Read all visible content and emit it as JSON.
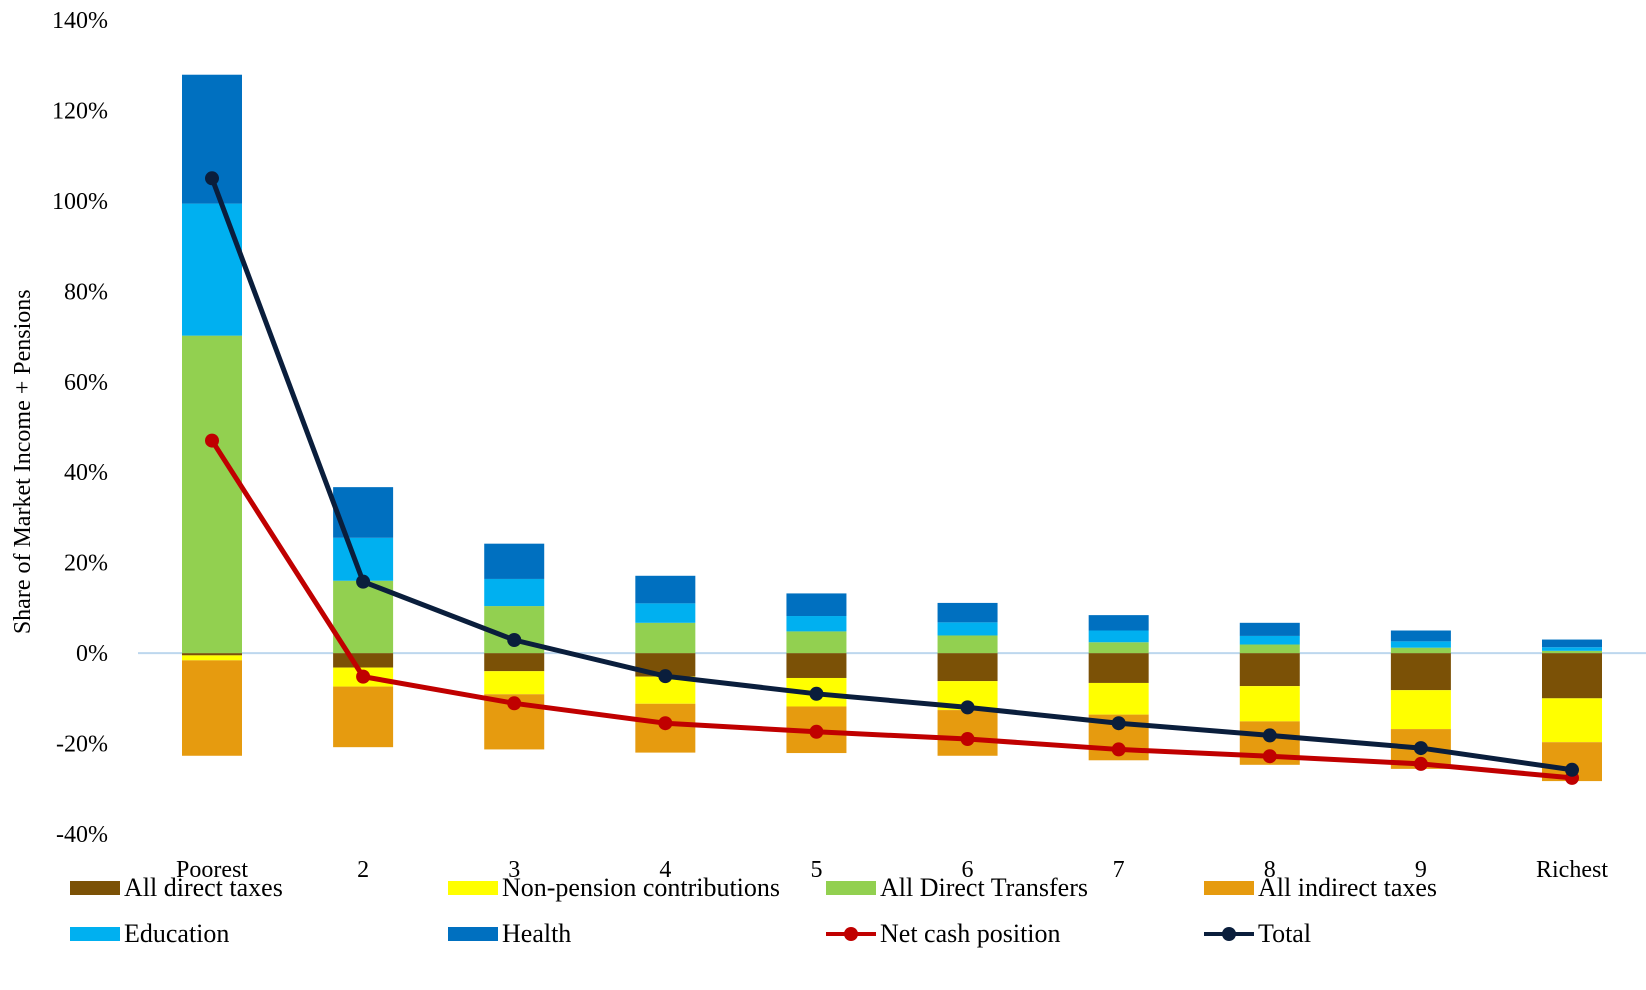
{
  "chart_data": {
    "type": "bar",
    "stacked": true,
    "ylabel": "Share of Market Income + Pensions",
    "xlabel": "",
    "ylim": [
      -40,
      140
    ],
    "yticks": [
      -40,
      -20,
      0,
      20,
      40,
      60,
      80,
      100,
      120,
      140
    ],
    "ytick_labels": [
      "-40%",
      "-20%",
      "0%",
      "20%",
      "40%",
      "60%",
      "80%",
      "100%",
      "120%",
      "140%"
    ],
    "categories": [
      "Poorest",
      "2",
      "3",
      "4",
      "5",
      "6",
      "7",
      "8",
      "9",
      "Richest"
    ],
    "bar_series": [
      {
        "name": "All direct taxes",
        "color": "#7B5106",
        "values": [
          -0.5,
          -3.2,
          -4.0,
          -5.2,
          -5.5,
          -6.2,
          -6.6,
          -7.3,
          -8.2,
          -10.0
        ]
      },
      {
        "name": "Non-pension contributions",
        "color": "#FFFF00",
        "values": [
          -1.1,
          -4.2,
          -5.1,
          -6.0,
          -6.3,
          -6.4,
          -7.0,
          -7.8,
          -8.6,
          -9.7
        ]
      },
      {
        "name": "All Direct  Transfers",
        "color": "#92D050",
        "values": [
          70.2,
          16.0,
          10.4,
          6.7,
          4.8,
          3.9,
          2.4,
          1.9,
          1.2,
          0.5
        ]
      },
      {
        "name": "All indirect taxes",
        "color": "#E69B0F",
        "values": [
          -21.1,
          -13.4,
          -12.2,
          -10.8,
          -10.3,
          -10.1,
          -10.1,
          -9.6,
          -8.8,
          -8.6
        ]
      },
      {
        "name": "Education",
        "color": "#00B0F0",
        "values": [
          29.2,
          9.5,
          6.0,
          4.3,
          3.4,
          2.9,
          2.6,
          1.9,
          1.4,
          0.8
        ]
      },
      {
        "name": "Health",
        "color": "#0070C0",
        "values": [
          28.5,
          11.2,
          7.8,
          6.1,
          5.0,
          4.3,
          3.4,
          2.9,
          2.4,
          1.7
        ]
      }
    ],
    "line_series": [
      {
        "name": "Net cash position",
        "color": "#C00000",
        "values": [
          47.0,
          -5.2,
          -11.1,
          -15.5,
          -17.4,
          -19.0,
          -21.3,
          -22.8,
          -24.5,
          -27.6
        ]
      },
      {
        "name": "Total",
        "color": "#0A1E3C",
        "values": [
          105.0,
          15.8,
          2.9,
          -5.1,
          -9.0,
          -12.0,
          -15.5,
          -18.2,
          -21.0,
          -25.8
        ]
      }
    ],
    "legend_position": "bottom",
    "zero_line_color": "#BDD7EE",
    "grid": false
  }
}
